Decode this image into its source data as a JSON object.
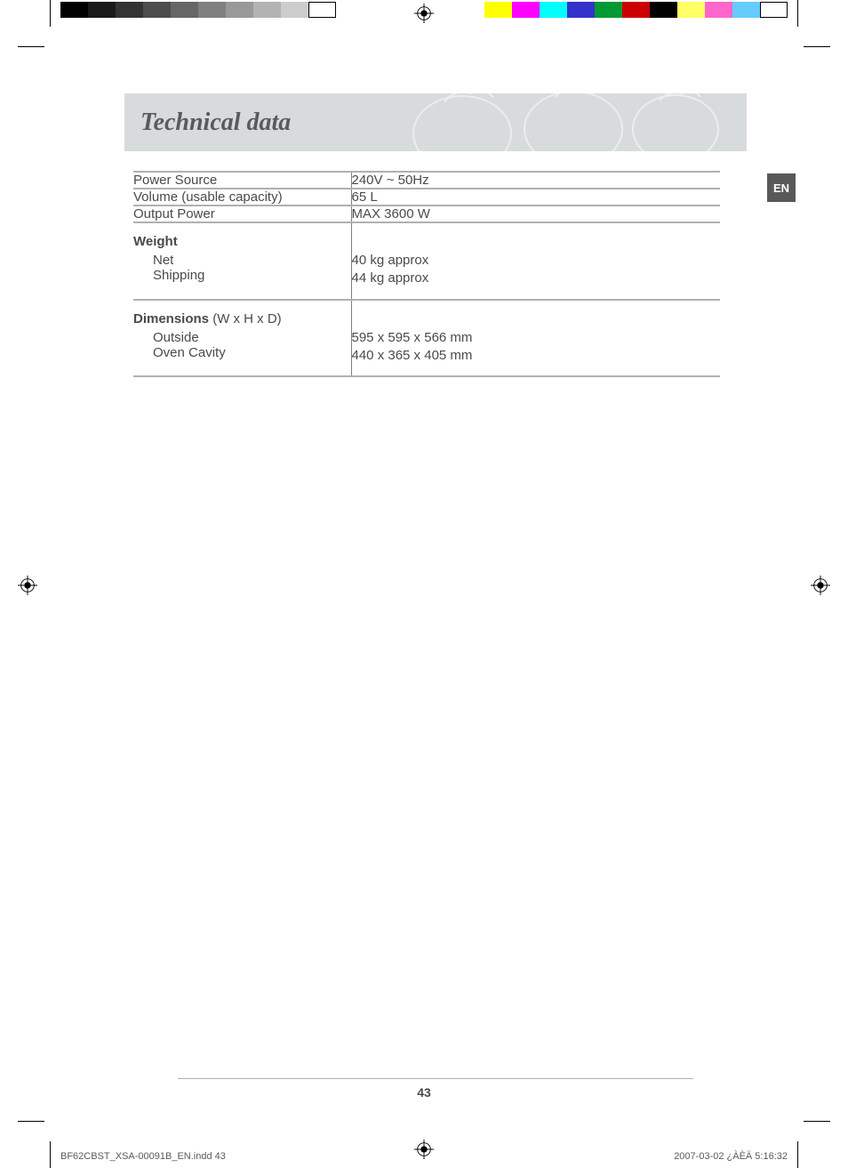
{
  "lang_tab": "EN",
  "title": "Technical data",
  "page_number": "43",
  "rows": [
    {
      "label": "Power Source",
      "value": "240V ~  50Hz"
    },
    {
      "label": "Volume (usable capacity)",
      "value": "65 L"
    },
    {
      "label": "Output Power",
      "value": "MAX  3600 W"
    }
  ],
  "weight_section": {
    "heading": "Weight",
    "items": [
      {
        "label": "Net",
        "value": "40 kg approx"
      },
      {
        "label": "Shipping",
        "value": "44 kg approx"
      }
    ]
  },
  "dimensions_section": {
    "heading_bold": "Dimensions",
    "heading_rest": " (W x H x D)",
    "items": [
      {
        "label": "Outside",
        "value": "595 x 595 x 566 mm"
      },
      {
        "label": "Oven Cavity",
        "value": "440 x 365 x 405 mm"
      }
    ]
  },
  "colorbar_gray": [
    "#000000",
    "#1a1a1a",
    "#333333",
    "#4d4d4d",
    "#666666",
    "#808080",
    "#999999",
    "#b3b3b3",
    "#cccccc",
    "#ffffff"
  ],
  "colorbar_color": [
    "#ffff00",
    "#ff00ff",
    "#00ffff",
    "#3333cc",
    "#009933",
    "#cc0000",
    "#000000",
    "#ffff66",
    "#ff66cc",
    "#66ccff",
    "#ffffff"
  ],
  "footer": {
    "left": "BF62CBST_XSA-00091B_EN.indd   43",
    "right": "2007-03-02   ¿ÀÈÄ 5:16:32"
  }
}
